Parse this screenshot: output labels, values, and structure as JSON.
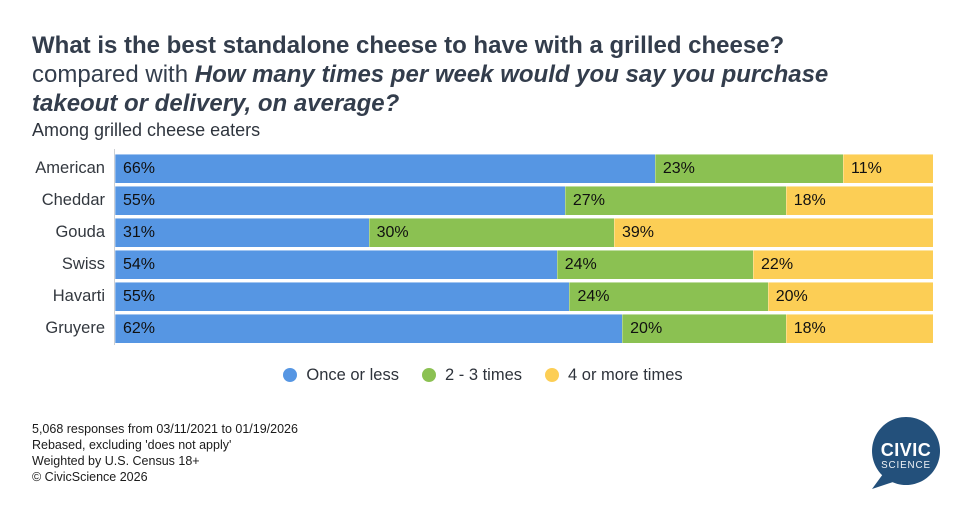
{
  "title": {
    "question1": "What is the best standalone cheese to have with a grilled cheese?",
    "connector": "compared with ",
    "question2": "How many times per week would you say you purchase takeout or delivery, on average?"
  },
  "subtitle": "Among grilled cheese eaters",
  "chart_data": {
    "type": "bar",
    "orientation": "horizontal",
    "stacked": true,
    "unit": "%",
    "xlim": [
      0,
      100
    ],
    "grid": false,
    "value_labels": "inside-start",
    "legend_position": "bottom-center",
    "categories": [
      "American",
      "Cheddar",
      "Gouda",
      "Swiss",
      "Havarti",
      "Gruyere"
    ],
    "series": [
      {
        "name": "Once or less",
        "color": "#5696E3",
        "values": [
          66,
          55,
          31,
          54,
          55,
          62
        ]
      },
      {
        "name": "2 - 3 times",
        "color": "#8BC152",
        "values": [
          23,
          27,
          30,
          24,
          24,
          20
        ]
      },
      {
        "name": "4 or more times",
        "color": "#FCCE55",
        "values": [
          11,
          18,
          39,
          22,
          20,
          18
        ]
      }
    ]
  },
  "footer": {
    "lines": [
      "5,068 responses from 03/11/2021 to 01/19/2026",
      "Rebased, excluding 'does not apply'",
      "Weighted by U.S. Census 18+",
      "© CivicScience 2026"
    ]
  },
  "logo": {
    "line1": "CIVIC",
    "line2": "SCIENCE",
    "color": "#23507B"
  }
}
